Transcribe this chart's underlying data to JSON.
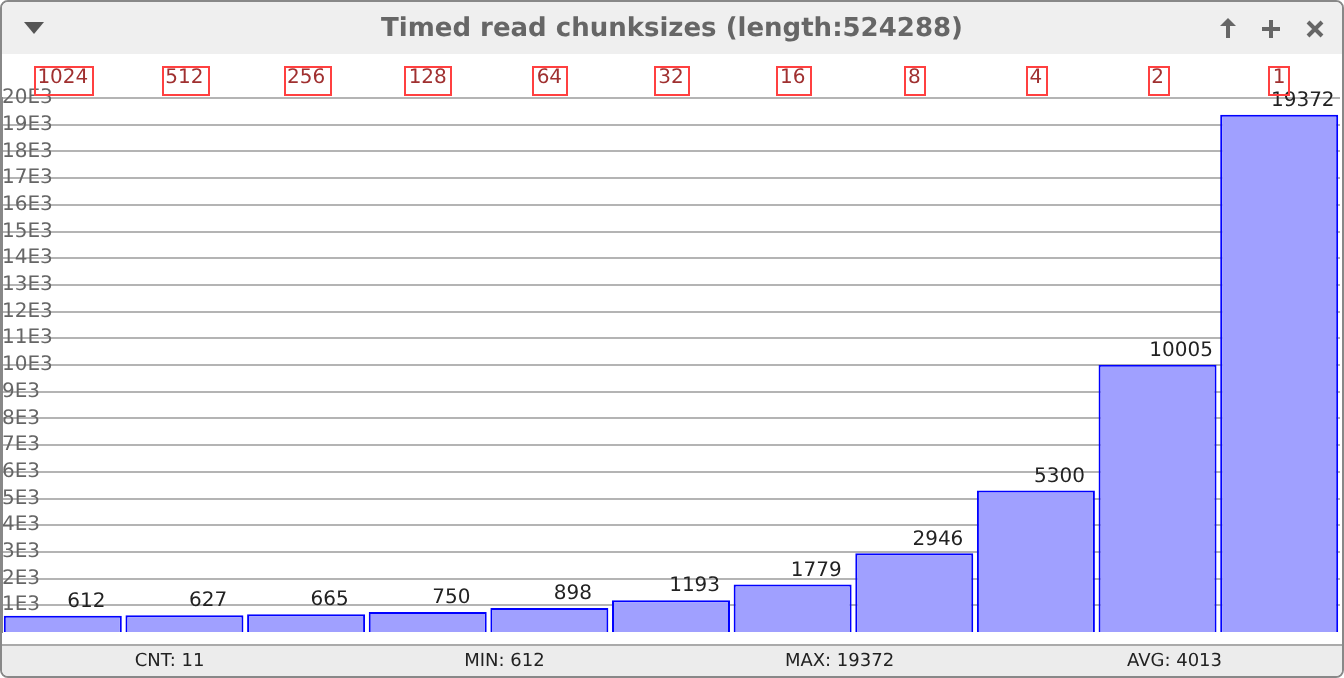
{
  "chart_data": {
    "type": "bar",
    "title": "Timed read chunksizes (length:524288)",
    "categories": [
      "1024",
      "512",
      "256",
      "128",
      "64",
      "32",
      "16",
      "8",
      "4",
      "2",
      "1"
    ],
    "values": [
      612,
      627,
      665,
      750,
      898,
      1193,
      1779,
      2946,
      5300,
      10005,
      19372
    ],
    "color": "#a0a0ff",
    "ylim": [
      0,
      20000
    ],
    "yticks": [
      {
        "value": 1000,
        "label": "1E3"
      },
      {
        "value": 2000,
        "label": "2E3"
      },
      {
        "value": 3000,
        "label": "3E3"
      },
      {
        "value": 4000,
        "label": "4E3"
      },
      {
        "value": 5000,
        "label": "5E3"
      },
      {
        "value": 6000,
        "label": "6E3"
      },
      {
        "value": 7000,
        "label": "7E3"
      },
      {
        "value": 8000,
        "label": "8E3"
      },
      {
        "value": 9000,
        "label": "9E3"
      },
      {
        "value": 10000,
        "label": "10E3"
      },
      {
        "value": 11000,
        "label": "11E3"
      },
      {
        "value": 12000,
        "label": "12E3"
      },
      {
        "value": 13000,
        "label": "13E3"
      },
      {
        "value": 14000,
        "label": "14E3"
      },
      {
        "value": 15000,
        "label": "15E3"
      },
      {
        "value": 16000,
        "label": "16E3"
      },
      {
        "value": 17000,
        "label": "17E3"
      },
      {
        "value": 18000,
        "label": "18E3"
      },
      {
        "value": 19000,
        "label": "19E3"
      },
      {
        "value": 20000,
        "label": "20E3"
      }
    ],
    "grid": "y",
    "data_labels": true,
    "annotations": [
      "CNT: 11",
      "MIN: 612",
      "MAX: 19372",
      "AVG: 4013"
    ]
  }
}
